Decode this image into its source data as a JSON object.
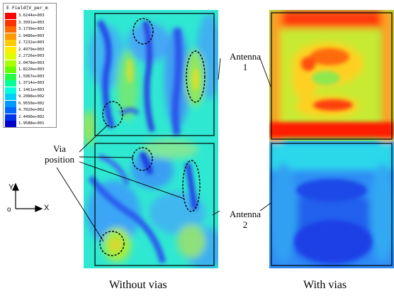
{
  "legend": {
    "title": "E Field[V_per_m",
    "values": [
      "3.6244e+003",
      "3.3991e+003",
      "3.1739e+003",
      "2.9486e+003",
      "2.7232e+003",
      "2.4979e+003",
      "2.2726e+003",
      "2.0478e+003",
      "1.8220e+003",
      "1.5967e+003",
      "1.3714e+003",
      "1.1461e+003",
      "9.2088e+002",
      "6.9550e+002",
      "4.7020e+002",
      "2.4490e+002",
      "1.9588e+001"
    ],
    "colors": [
      "#ff0000",
      "#ff3300",
      "#ff6a00",
      "#ff9900",
      "#ffcc00",
      "#ffee00",
      "#ddff00",
      "#aaff00",
      "#66ff00",
      "#22ff44",
      "#00ff99",
      "#00ffdd",
      "#00ccff",
      "#0099ff",
      "#0066ff",
      "#0033ee",
      "#0000cc"
    ]
  },
  "labels": {
    "antenna1_line1": "Antenna",
    "antenna1_line2": "1",
    "antenna2_line1": "Antenna",
    "antenna2_line2": "2",
    "via_line1": "Via",
    "via_line2": "position"
  },
  "axes": {
    "y": "Y",
    "x": "X",
    "origin": "o"
  },
  "captions": {
    "left": "Without vias",
    "right": "With vias"
  }
}
